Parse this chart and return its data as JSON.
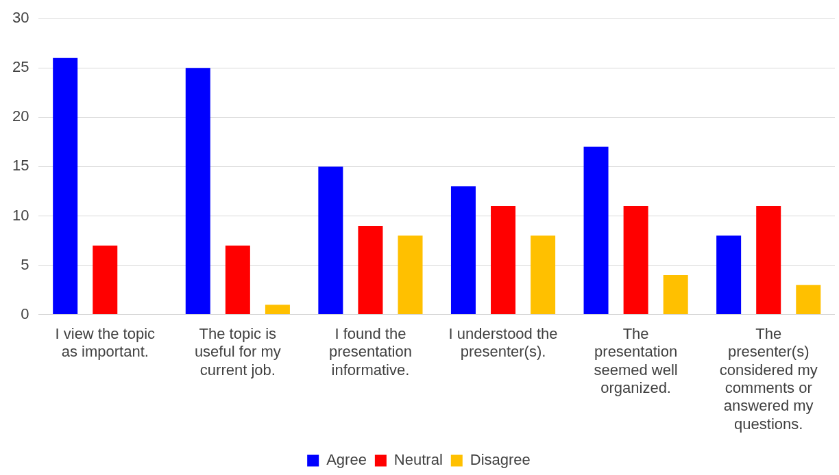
{
  "chart_data": {
    "type": "bar",
    "categories": [
      "I view the topic as important.",
      "The topic is useful for my current job.",
      "I found the presentation informative.",
      "I understood the presenter(s).",
      "The presentation seemed well organized.",
      "The presenter(s) considered my comments or answered my questions."
    ],
    "series": [
      {
        "name": "Agree",
        "color": "#0000ff",
        "values": [
          26,
          25,
          15,
          13,
          17,
          8
        ]
      },
      {
        "name": "Neutral",
        "color": "#ff0000",
        "values": [
          7,
          7,
          9,
          11,
          11,
          11
        ]
      },
      {
        "name": "Disagree",
        "color": "#ffc000",
        "values": [
          0,
          1,
          8,
          8,
          4,
          3
        ]
      }
    ],
    "ylim": [
      0,
      30
    ],
    "yticks": [
      0,
      5,
      10,
      15,
      20,
      25,
      30
    ],
    "grid": "y",
    "legend": "bottom"
  }
}
